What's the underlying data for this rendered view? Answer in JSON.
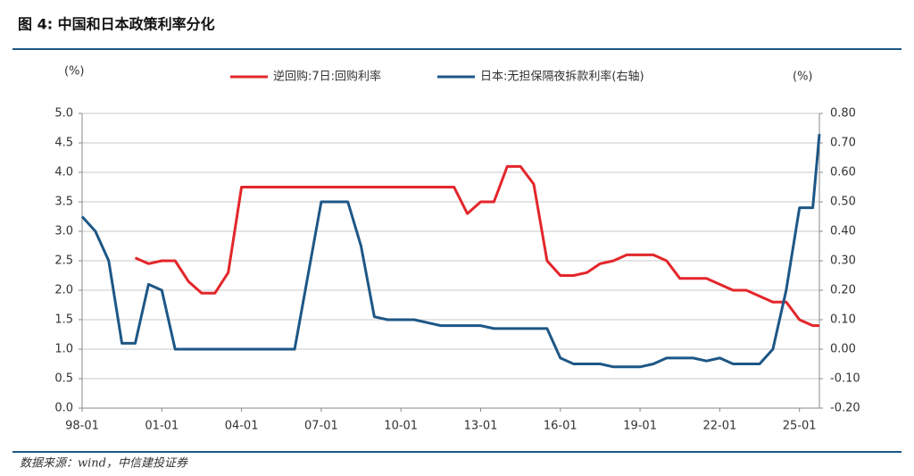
{
  "chart_data": {
    "type": "line",
    "title": "图 4: 中国和日本政策利率分化",
    "source": "数据来源：wind，中信建投证券",
    "y_label": "(%)",
    "y2_label": "(%)",
    "x": [
      "98-01",
      "98-07",
      "99-01",
      "99-07",
      "00-01",
      "00-07",
      "01-01",
      "01-07",
      "02-01",
      "02-07",
      "03-01",
      "03-07",
      "04-01",
      "04-07",
      "05-01",
      "05-07",
      "06-01",
      "06-07",
      "07-01",
      "07-07",
      "08-01",
      "08-07",
      "09-01",
      "09-07",
      "10-01",
      "10-07",
      "11-01",
      "11-07",
      "12-01",
      "12-07",
      "13-01",
      "13-07",
      "14-01",
      "14-07",
      "15-01",
      "15-07",
      "16-01",
      "16-07",
      "17-01",
      "17-07",
      "18-01",
      "18-07",
      "19-01",
      "19-07",
      "20-01",
      "20-07",
      "21-01",
      "21-07",
      "22-01",
      "22-07",
      "23-01",
      "23-07",
      "24-01",
      "24-07",
      "25-01",
      "25-07",
      "25-10"
    ],
    "xlim": [
      "98-01",
      "25-10"
    ],
    "xticks": [
      "98-01",
      "01-01",
      "04-01",
      "07-01",
      "10-01",
      "13-01",
      "16-01",
      "19-01",
      "22-01",
      "25-01"
    ],
    "ylim": [
      0,
      5
    ],
    "yticks": [
      {
        "value": 0,
        "label": "0.0"
      },
      0.5,
      {
        "value": 1,
        "label": "1.0"
      },
      1.5,
      {
        "value": 2,
        "label": "2.0"
      },
      2.5,
      {
        "value": 3,
        "label": "3.0"
      },
      3.5,
      {
        "value": 4,
        "label": "4.0"
      },
      4.5,
      {
        "value": 5,
        "label": "5.0"
      }
    ],
    "y2lim": [
      -0.2,
      0.8
    ],
    "y2ticks": [
      {
        "value": -0.2,
        "label": "-0.20"
      },
      {
        "value": -0.1,
        "label": "-0.10"
      },
      {
        "value": 0,
        "label": "0.00"
      },
      {
        "value": 0.1,
        "label": "0.10"
      },
      {
        "value": 0.2,
        "label": "0.20"
      },
      {
        "value": 0.3,
        "label": "0.30"
      },
      {
        "value": 0.4,
        "label": "0.40"
      },
      {
        "value": 0.5,
        "label": "0.50"
      },
      {
        "value": 0.6,
        "label": "0.60"
      },
      {
        "value": 0.7,
        "label": "0.70"
      },
      {
        "value": 0.8,
        "label": "0.80"
      }
    ],
    "grid": true,
    "series": [
      {
        "name": "逆回购:7日:回购利率",
        "color": "#e3262b",
        "values": [
          null,
          null,
          null,
          null,
          2.55,
          2.45,
          2.5,
          2.5,
          2.15,
          1.95,
          1.95,
          2.3,
          3.75,
          3.75,
          3.75,
          3.75,
          3.75,
          3.75,
          3.75,
          3.75,
          3.75,
          3.75,
          3.75,
          3.75,
          3.75,
          3.75,
          3.75,
          3.75,
          3.75,
          3.3,
          3.5,
          3.5,
          4.1,
          4.1,
          3.8,
          2.5,
          2.25,
          2.25,
          2.3,
          2.45,
          2.5,
          2.6,
          2.6,
          2.6,
          2.5,
          2.2,
          2.2,
          2.2,
          2.1,
          2.0,
          2.0,
          1.9,
          1.8,
          1.8,
          1.5,
          1.4,
          1.4
        ]
      },
      {
        "name": "日本:无担保隔夜拆款利率(右轴)",
        "color": "#1d5786",
        "axis": "y2",
        "values": [
          0.45,
          0.4,
          0.3,
          0.02,
          0.02,
          0.22,
          0.2,
          0.0,
          0.0,
          0.0,
          0.0,
          0.0,
          0.0,
          0.0,
          0.0,
          0.0,
          0.0,
          0.25,
          0.5,
          0.5,
          0.5,
          0.35,
          0.11,
          0.1,
          0.1,
          0.1,
          0.09,
          0.08,
          0.08,
          0.08,
          0.08,
          0.07,
          0.07,
          0.07,
          0.07,
          0.07,
          -0.03,
          -0.05,
          -0.05,
          -0.05,
          -0.06,
          -0.06,
          -0.06,
          -0.05,
          -0.03,
          -0.03,
          -0.03,
          -0.04,
          -0.03,
          -0.05,
          -0.05,
          -0.05,
          0.0,
          0.2,
          0.48,
          0.48,
          0.73
        ]
      }
    ]
  }
}
